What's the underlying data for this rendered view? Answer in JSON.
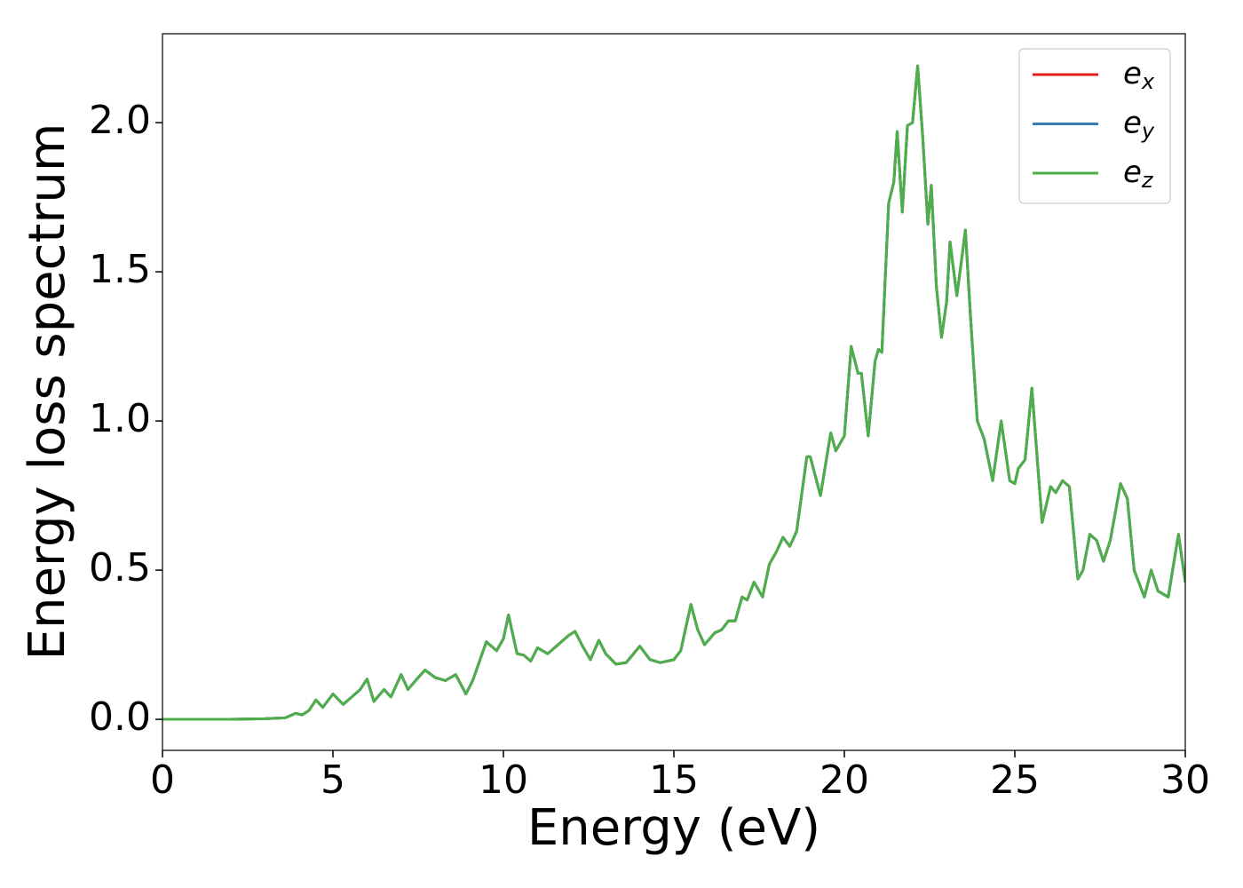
{
  "chart_data": {
    "type": "line",
    "xlabel": "Energy (eV)",
    "ylabel": "Energy loss spectrum",
    "xlim": [
      0,
      30
    ],
    "ylim": [
      -0.104,
      2.298
    ],
    "xticks": [
      0,
      5,
      10,
      15,
      20,
      25,
      30
    ],
    "yticks": [
      {
        "value": 0,
        "label": "0.0"
      },
      0.5,
      {
        "value": 1,
        "label": "1.0"
      },
      1.5,
      {
        "value": 2,
        "label": "2.0"
      }
    ],
    "legend": "upper right",
    "x": [
      0,
      1,
      2,
      3,
      3.6,
      3.9,
      4.1,
      4.3,
      4.5,
      4.7,
      5.0,
      5.3,
      5.7,
      5.8,
      6.0,
      6.2,
      6.5,
      6.7,
      7.0,
      7.2,
      7.5,
      7.7,
      8.0,
      8.3,
      8.6,
      8.9,
      9.1,
      9.5,
      9.8,
      10.0,
      10.15,
      10.4,
      10.6,
      10.8,
      11.0,
      11.3,
      11.6,
      11.9,
      12.1,
      12.3,
      12.55,
      12.8,
      13.0,
      13.3,
      13.6,
      14.0,
      14.3,
      14.6,
      15.0,
      15.2,
      15.5,
      15.7,
      15.9,
      16.2,
      16.4,
      16.6,
      16.8,
      17.0,
      17.15,
      17.35,
      17.6,
      17.8,
      18.0,
      18.2,
      18.4,
      18.6,
      18.9,
      19.0,
      19.3,
      19.6,
      19.75,
      20.0,
      20.2,
      20.4,
      20.5,
      20.7,
      20.9,
      21.0,
      21.1,
      21.3,
      21.45,
      21.55,
      21.7,
      21.85,
      22.0,
      22.15,
      22.3,
      22.45,
      22.55,
      22.7,
      22.85,
      23.0,
      23.1,
      23.3,
      23.45,
      23.55,
      23.7,
      23.9,
      24.1,
      24.35,
      24.6,
      24.85,
      25.0,
      25.1,
      25.3,
      25.5,
      25.8,
      26.05,
      26.2,
      26.4,
      26.6,
      26.85,
      27.0,
      27.2,
      27.4,
      27.6,
      27.8,
      28.1,
      28.3,
      28.5,
      28.8,
      29.0,
      29.2,
      29.5,
      29.8,
      30
    ],
    "series": [
      {
        "name": "e_x",
        "color": "#e41a1c",
        "values": [
          0,
          0,
          0,
          0.002,
          0.005,
          0.02,
          0.015,
          0.03,
          0.065,
          0.04,
          0.085,
          0.05,
          0.09,
          0.1,
          0.135,
          0.06,
          0.1,
          0.075,
          0.15,
          0.1,
          0.14,
          0.165,
          0.14,
          0.13,
          0.15,
          0.085,
          0.13,
          0.26,
          0.23,
          0.27,
          0.35,
          0.22,
          0.215,
          0.195,
          0.24,
          0.22,
          0.25,
          0.28,
          0.295,
          0.25,
          0.2,
          0.265,
          0.22,
          0.185,
          0.19,
          0.245,
          0.2,
          0.19,
          0.2,
          0.23,
          0.385,
          0.3,
          0.25,
          0.29,
          0.3,
          0.33,
          0.33,
          0.41,
          0.4,
          0.46,
          0.41,
          0.52,
          0.56,
          0.61,
          0.58,
          0.63,
          0.88,
          0.88,
          0.75,
          0.96,
          0.9,
          0.95,
          1.25,
          1.16,
          1.16,
          0.95,
          1.2,
          1.24,
          1.23,
          1.73,
          1.8,
          1.97,
          1.7,
          1.99,
          2.0,
          2.19,
          1.95,
          1.66,
          1.79,
          1.45,
          1.28,
          1.4,
          1.6,
          1.42,
          1.55,
          1.64,
          1.35,
          1.0,
          0.94,
          0.8,
          1.0,
          0.8,
          0.79,
          0.84,
          0.87,
          1.11,
          0.66,
          0.78,
          0.76,
          0.8,
          0.78,
          0.47,
          0.5,
          0.62,
          0.6,
          0.53,
          0.6,
          0.79,
          0.74,
          0.5,
          0.41,
          0.5,
          0.43,
          0.41,
          0.62,
          0.46
        ]
      },
      {
        "name": "e_y",
        "color": "#377eb8",
        "values": [
          0,
          0,
          0,
          0.002,
          0.005,
          0.02,
          0.015,
          0.03,
          0.065,
          0.04,
          0.085,
          0.05,
          0.09,
          0.1,
          0.135,
          0.06,
          0.1,
          0.075,
          0.15,
          0.1,
          0.14,
          0.165,
          0.14,
          0.13,
          0.15,
          0.085,
          0.13,
          0.26,
          0.23,
          0.27,
          0.35,
          0.22,
          0.215,
          0.195,
          0.24,
          0.22,
          0.25,
          0.28,
          0.295,
          0.25,
          0.2,
          0.265,
          0.22,
          0.185,
          0.19,
          0.245,
          0.2,
          0.19,
          0.2,
          0.23,
          0.385,
          0.3,
          0.25,
          0.29,
          0.3,
          0.33,
          0.33,
          0.41,
          0.4,
          0.46,
          0.41,
          0.52,
          0.56,
          0.61,
          0.58,
          0.63,
          0.88,
          0.88,
          0.75,
          0.96,
          0.9,
          0.95,
          1.25,
          1.16,
          1.16,
          0.95,
          1.2,
          1.24,
          1.23,
          1.73,
          1.8,
          1.97,
          1.7,
          1.99,
          2.0,
          2.19,
          1.95,
          1.66,
          1.79,
          1.45,
          1.28,
          1.4,
          1.6,
          1.42,
          1.55,
          1.64,
          1.35,
          1.0,
          0.94,
          0.8,
          1.0,
          0.8,
          0.79,
          0.84,
          0.87,
          1.11,
          0.66,
          0.78,
          0.76,
          0.8,
          0.78,
          0.47,
          0.5,
          0.62,
          0.6,
          0.53,
          0.6,
          0.79,
          0.74,
          0.5,
          0.41,
          0.5,
          0.43,
          0.41,
          0.62,
          0.46
        ]
      },
      {
        "name": "e_z",
        "color": "#4daf4a",
        "values": [
          0,
          0,
          0,
          0.002,
          0.005,
          0.02,
          0.015,
          0.03,
          0.065,
          0.04,
          0.085,
          0.05,
          0.09,
          0.1,
          0.135,
          0.06,
          0.1,
          0.075,
          0.15,
          0.1,
          0.14,
          0.165,
          0.14,
          0.13,
          0.15,
          0.085,
          0.13,
          0.26,
          0.23,
          0.27,
          0.35,
          0.22,
          0.215,
          0.195,
          0.24,
          0.22,
          0.25,
          0.28,
          0.295,
          0.25,
          0.2,
          0.265,
          0.22,
          0.185,
          0.19,
          0.245,
          0.2,
          0.19,
          0.2,
          0.23,
          0.385,
          0.3,
          0.25,
          0.29,
          0.3,
          0.33,
          0.33,
          0.41,
          0.4,
          0.46,
          0.41,
          0.52,
          0.56,
          0.61,
          0.58,
          0.63,
          0.88,
          0.88,
          0.75,
          0.96,
          0.9,
          0.95,
          1.25,
          1.16,
          1.16,
          0.95,
          1.2,
          1.24,
          1.23,
          1.73,
          1.8,
          1.97,
          1.7,
          1.99,
          2.0,
          2.19,
          1.95,
          1.66,
          1.79,
          1.45,
          1.28,
          1.4,
          1.6,
          1.42,
          1.55,
          1.64,
          1.35,
          1.0,
          0.94,
          0.8,
          1.0,
          0.8,
          0.79,
          0.84,
          0.87,
          1.11,
          0.66,
          0.78,
          0.76,
          0.8,
          0.78,
          0.47,
          0.5,
          0.62,
          0.6,
          0.53,
          0.6,
          0.79,
          0.74,
          0.5,
          0.41,
          0.5,
          0.43,
          0.41,
          0.62,
          0.46
        ]
      }
    ]
  }
}
